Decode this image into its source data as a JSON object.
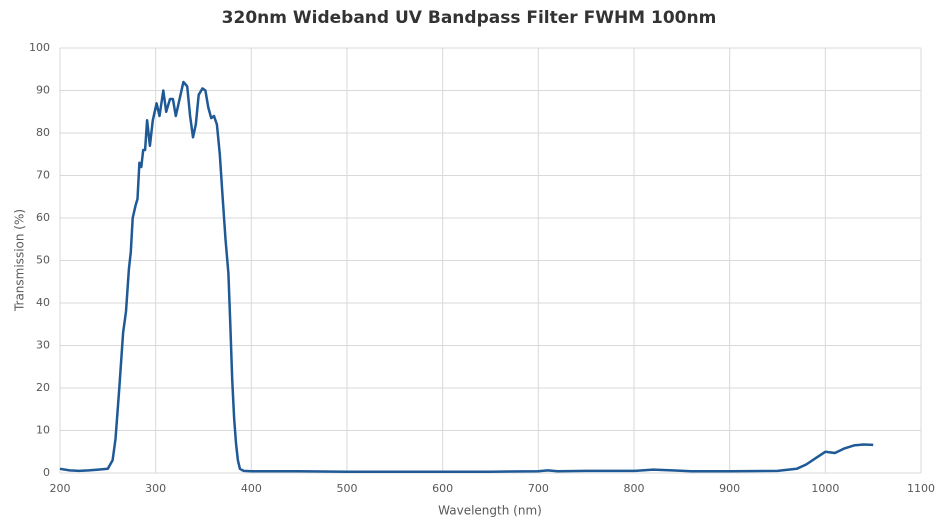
{
  "chart_data": {
    "type": "line",
    "title": "320nm Wideband UV Bandpass Filter FWHM 100nm",
    "x_label": "Wavelength (nm)",
    "y_label": "Transmission (%)",
    "xlim": [
      200,
      1100
    ],
    "xticks": [
      200,
      300,
      400,
      500,
      600,
      700,
      800,
      900,
      1000,
      1100
    ],
    "ylim": [
      0,
      100
    ],
    "yticks": [
      0,
      10,
      20,
      30,
      40,
      50,
      60,
      70,
      80,
      90,
      100
    ],
    "grid": true,
    "x": [
      200,
      210,
      220,
      230,
      240,
      250,
      255,
      258,
      262,
      266,
      269,
      272,
      274,
      276,
      279,
      281,
      283,
      285,
      287,
      289,
      291,
      294,
      297,
      301,
      304,
      308,
      311,
      315,
      318,
      321,
      325,
      329,
      333,
      336,
      339,
      342,
      345,
      349,
      352,
      355,
      358,
      361,
      364,
      367,
      370,
      373,
      376,
      378,
      380,
      382,
      384,
      386,
      388,
      392,
      400,
      450,
      500,
      550,
      600,
      650,
      700,
      710,
      720,
      750,
      800,
      820,
      840,
      860,
      900,
      950,
      970,
      980,
      990,
      1000,
      1010,
      1020,
      1030,
      1040,
      1050
    ],
    "series": [
      {
        "name": "Transmission",
        "color": "#1f5a96",
        "values": [
          1.0,
          0.6,
          0.5,
          0.6,
          0.8,
          1.0,
          3,
          8,
          20,
          33,
          38,
          48,
          52,
          60,
          63,
          64.5,
          73,
          72,
          76,
          76,
          83,
          77,
          83,
          87,
          84,
          90,
          85,
          88,
          88,
          84,
          88,
          92,
          91,
          84,
          79,
          82,
          89,
          90.5,
          90,
          86,
          83.5,
          84,
          82,
          75,
          65,
          55,
          47,
          35,
          22,
          13,
          7,
          3,
          1,
          0.5,
          0.4,
          0.4,
          0.3,
          0.3,
          0.3,
          0.3,
          0.4,
          0.6,
          0.4,
          0.5,
          0.5,
          0.8,
          0.6,
          0.4,
          0.4,
          0.5,
          1,
          2,
          3.5,
          5,
          4.7,
          5.8,
          6.5,
          6.7,
          6.6
        ]
      }
    ]
  }
}
